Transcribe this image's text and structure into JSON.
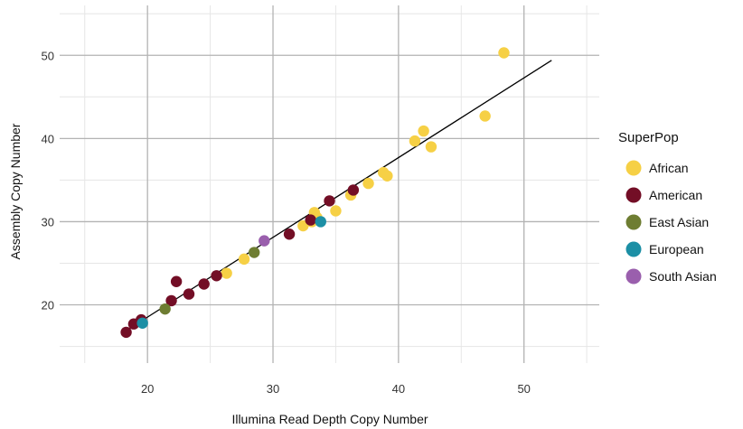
{
  "chart_data": {
    "type": "scatter",
    "xlabel": "Illumina Read Depth Copy Number",
    "ylabel": "Assembly Copy Number",
    "xlim": [
      13,
      56
    ],
    "ylim": [
      13,
      56
    ],
    "x_ticks": [
      20,
      30,
      40,
      50
    ],
    "y_ticks": [
      20,
      30,
      40,
      50
    ],
    "grid": true,
    "legend_title": "SuperPop",
    "legend_position": "right",
    "series": [
      {
        "name": "African",
        "color": "#F6D045",
        "points": [
          [
            48.4,
            50.3
          ],
          [
            46.9,
            42.7
          ],
          [
            42.0,
            40.9
          ],
          [
            41.3,
            39.7
          ],
          [
            42.6,
            39.0
          ],
          [
            38.8,
            35.9
          ],
          [
            39.1,
            35.5
          ],
          [
            37.6,
            34.6
          ],
          [
            36.2,
            33.2
          ],
          [
            35.0,
            31.3
          ],
          [
            33.3,
            31.1
          ],
          [
            33.5,
            30.5
          ],
          [
            33.1,
            30.0
          ],
          [
            32.4,
            29.5
          ],
          [
            27.7,
            25.5
          ],
          [
            26.3,
            23.8
          ]
        ]
      },
      {
        "name": "American",
        "color": "#730E26",
        "points": [
          [
            36.4,
            33.8
          ],
          [
            34.5,
            32.5
          ],
          [
            33.0,
            30.2
          ],
          [
            31.3,
            28.5
          ],
          [
            25.5,
            23.5
          ],
          [
            24.5,
            22.5
          ],
          [
            23.3,
            21.3
          ],
          [
            22.3,
            22.8
          ],
          [
            21.9,
            20.5
          ],
          [
            19.5,
            18.2
          ],
          [
            18.9,
            17.7
          ],
          [
            18.3,
            16.7
          ]
        ]
      },
      {
        "name": "East Asian",
        "color": "#6E7D32",
        "points": [
          [
            28.5,
            26.3
          ],
          [
            21.4,
            19.5
          ]
        ]
      },
      {
        "name": "European",
        "color": "#1C8FA5",
        "points": [
          [
            33.8,
            30.0
          ],
          [
            19.6,
            17.8
          ]
        ]
      },
      {
        "name": "South Asian",
        "color": "#9A5FAD",
        "points": [
          [
            29.3,
            27.7
          ]
        ]
      }
    ],
    "fit_line": {
      "color": "#000000",
      "x": [
        18.2,
        52.2
      ],
      "y": [
        16.8,
        49.4
      ]
    }
  }
}
